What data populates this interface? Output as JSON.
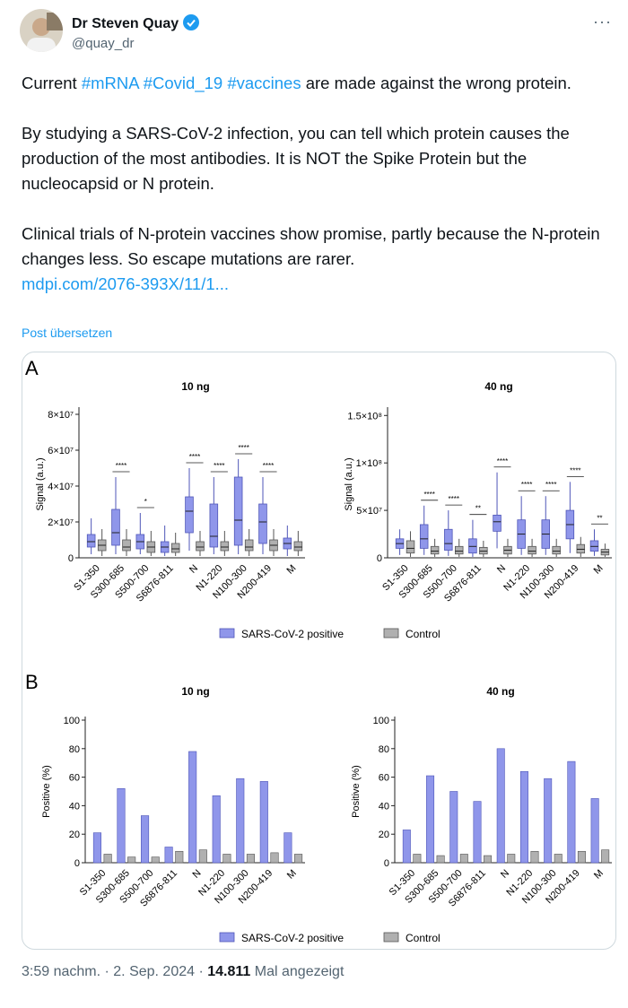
{
  "tweet": {
    "author": "Dr Steven Quay",
    "handle": "@quay_dr",
    "more": "···",
    "p1": {
      "before": "Current",
      "hashtags": [
        "#mRNA",
        "#Covid_19",
        "#vaccines"
      ],
      "after": "are made against the wrong protein."
    },
    "p2": "By studying a SARS-CoV-2 infection, you can tell which protein causes the production of the most antibodies. It is NOT the Spike Protein but the  nucleocapsid or N protein.",
    "p3": "Clinical trials of N-protein vaccines show promise, partly because the N-protein changes less. So escape mutations are rarer.",
    "link": "mdpi.com/2076-393X/11/1...",
    "translate": "Post übersetzen",
    "time_date": "3:59 nachm. · 2. Sep. 2024 ·",
    "views": "14.811",
    "views_label": "Mal angezeigt"
  },
  "figure": {
    "panels": [
      "A",
      "B"
    ]
  },
  "chart_data": [
    {
      "type": "box",
      "title": "10 ng",
      "y_label": "Signal (a.u.)",
      "categories": [
        "S1-350",
        "S300-685",
        "S500-700",
        "S6876-811",
        "N",
        "N1-220",
        "N100-300",
        "N200-419",
        "M"
      ],
      "ylim": [
        0,
        82000000
      ],
      "yticks": [
        0,
        {
          "value": 20000000,
          "label": "2×10⁷"
        },
        {
          "value": 40000000,
          "label": "4×10⁷"
        },
        {
          "value": 60000000,
          "label": "6×10⁷"
        },
        {
          "value": 80000000,
          "label": "8×10⁷"
        }
      ],
      "series": [
        {
          "name": "SARS-CoV-2 positive",
          "color": "#8f96ea",
          "q1": [
            6000000,
            7000000,
            5000000,
            3000000,
            14000000,
            6000000,
            7000000,
            8000000,
            5000000
          ],
          "median": [
            9000000,
            14000000,
            9000000,
            6000000,
            26000000,
            12000000,
            21000000,
            20000000,
            8000000
          ],
          "q3": [
            13000000,
            27000000,
            13000000,
            9000000,
            34000000,
            30000000,
            45000000,
            30000000,
            11000000
          ],
          "whislo": [
            2000000,
            2000000,
            2000000,
            1000000,
            4000000,
            2000000,
            2000000,
            2000000,
            1000000
          ],
          "whishi": [
            22000000,
            45000000,
            25000000,
            18000000,
            50000000,
            45000000,
            55000000,
            45000000,
            18000000
          ]
        },
        {
          "name": "Control",
          "color": "#b0b0b0",
          "q1": [
            4000000,
            4000000,
            3000000,
            3000000,
            4000000,
            4000000,
            4000000,
            4000000,
            4000000
          ],
          "median": [
            7000000,
            6000000,
            6000000,
            5000000,
            6000000,
            6000000,
            6000000,
            7000000,
            6000000
          ],
          "q3": [
            10000000,
            10000000,
            9000000,
            8000000,
            9000000,
            9000000,
            10000000,
            10000000,
            9000000
          ],
          "whislo": [
            1000000,
            1000000,
            1000000,
            1000000,
            1000000,
            1000000,
            1000000,
            1000000,
            1000000
          ],
          "whishi": [
            16000000,
            16000000,
            15000000,
            14000000,
            15000000,
            15000000,
            16000000,
            16000000,
            15000000
          ]
        }
      ],
      "annotations": [
        {
          "category": "S300-685",
          "text": "****"
        },
        {
          "category": "S500-700",
          "text": "*"
        },
        {
          "category": "N",
          "text": "****"
        },
        {
          "category": "N1-220",
          "text": "****"
        },
        {
          "category": "N100-300",
          "text": "****"
        },
        {
          "category": "N200-419",
          "text": "****"
        }
      ]
    },
    {
      "type": "box",
      "title": "40 ng",
      "y_label": "Signal (a.u.)",
      "categories": [
        "S1-350",
        "S300-685",
        "S500-700",
        "S6876-811",
        "N",
        "N1-220",
        "N100-300",
        "N200-419",
        "M"
      ],
      "ylim": [
        0,
        155000000
      ],
      "yticks": [
        0,
        {
          "value": 50000000,
          "label": "5×10⁷"
        },
        {
          "value": 100000000,
          "label": "1×10⁸"
        },
        {
          "value": 150000000,
          "label": "1.5×10⁸"
        }
      ],
      "series": [
        {
          "name": "SARS-CoV-2 positive",
          "color": "#8f96ea",
          "q1": [
            10000000,
            10000000,
            8000000,
            5000000,
            28000000,
            10000000,
            10000000,
            20000000,
            7000000
          ],
          "median": [
            15000000,
            20000000,
            15000000,
            12000000,
            38000000,
            25000000,
            25000000,
            35000000,
            12000000
          ],
          "q3": [
            20000000,
            35000000,
            30000000,
            20000000,
            45000000,
            40000000,
            40000000,
            50000000,
            18000000
          ],
          "whislo": [
            3000000,
            3000000,
            2000000,
            1000000,
            10000000,
            3000000,
            3000000,
            5000000,
            2000000
          ],
          "whishi": [
            30000000,
            55000000,
            50000000,
            40000000,
            90000000,
            65000000,
            65000000,
            80000000,
            30000000
          ]
        },
        {
          "name": "Control",
          "color": "#b0b0b0",
          "q1": [
            5000000,
            4000000,
            4000000,
            4000000,
            4000000,
            4000000,
            4000000,
            5000000,
            3000000
          ],
          "median": [
            10000000,
            7000000,
            7000000,
            7000000,
            8000000,
            7000000,
            7000000,
            9000000,
            6000000
          ],
          "q3": [
            18000000,
            12000000,
            12000000,
            11000000,
            12000000,
            12000000,
            12000000,
            14000000,
            9000000
          ],
          "whislo": [
            1000000,
            1000000,
            1000000,
            1000000,
            1000000,
            1000000,
            1000000,
            1000000,
            1000000
          ],
          "whishi": [
            28000000,
            20000000,
            20000000,
            18000000,
            20000000,
            20000000,
            20000000,
            22000000,
            15000000
          ]
        }
      ],
      "annotations": [
        {
          "category": "S300-685",
          "text": "****"
        },
        {
          "category": "S500-700",
          "text": "****"
        },
        {
          "category": "S6876-811",
          "text": "**"
        },
        {
          "category": "N",
          "text": "****"
        },
        {
          "category": "N1-220",
          "text": "****"
        },
        {
          "category": "N100-300",
          "text": "****"
        },
        {
          "category": "N200-419",
          "text": "****"
        },
        {
          "category": "M",
          "text": "**"
        }
      ]
    },
    {
      "type": "bar",
      "title": "10 ng",
      "y_label": "Positive (%)",
      "categories": [
        "S1-350",
        "S300-685",
        "S500-700",
        "S6876-811",
        "N",
        "N1-220",
        "N100-300",
        "N200-419",
        "M"
      ],
      "ylim": [
        0,
        100
      ],
      "yticks": [
        0,
        20,
        40,
        60,
        80,
        100
      ],
      "series": [
        {
          "name": "SARS-CoV-2 positive",
          "color": "#8f96ea",
          "values": [
            21,
            52,
            33,
            11,
            78,
            47,
            59,
            57,
            21
          ]
        },
        {
          "name": "Control",
          "color": "#b0b0b0",
          "values": [
            6,
            4,
            4,
            8,
            9,
            6,
            6,
            7,
            6
          ]
        }
      ]
    },
    {
      "type": "bar",
      "title": "40 ng",
      "y_label": "Positive (%)",
      "categories": [
        "S1-350",
        "S300-685",
        "S500-700",
        "S6876-811",
        "N",
        "N1-220",
        "N100-300",
        "N200-419",
        "M"
      ],
      "ylim": [
        0,
        100
      ],
      "yticks": [
        0,
        20,
        40,
        60,
        80,
        100
      ],
      "series": [
        {
          "name": "SARS-CoV-2 positive",
          "color": "#8f96ea",
          "values": [
            23,
            61,
            50,
            43,
            80,
            64,
            59,
            71,
            45
          ]
        },
        {
          "name": "Control",
          "color": "#b0b0b0",
          "values": [
            6,
            5,
            6,
            5,
            6,
            8,
            6,
            8,
            9
          ]
        }
      ]
    }
  ]
}
